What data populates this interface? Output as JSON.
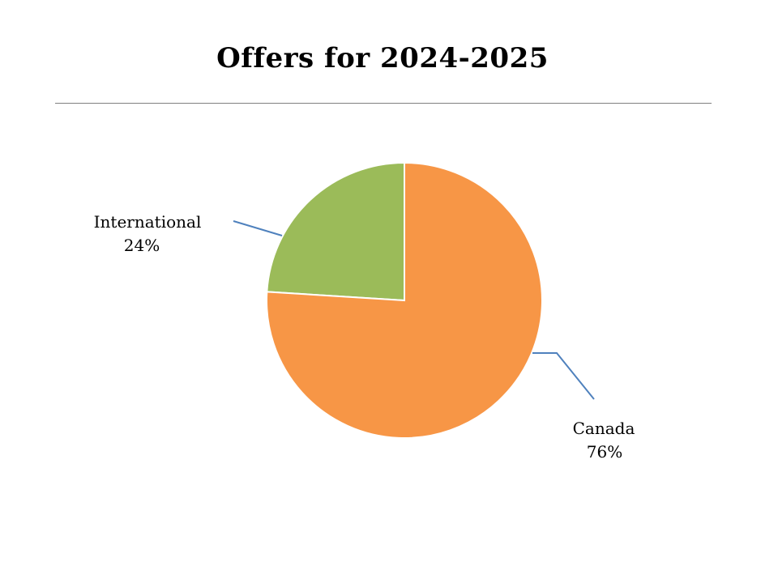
{
  "slide": {
    "title": "Offers for 2024-2025"
  },
  "chart_data": {
    "type": "pie",
    "title": "Offers for 2024-2025",
    "categories": [
      "International",
      "Canada"
    ],
    "values": [
      24,
      76
    ],
    "labels": [
      "24%",
      "76%"
    ],
    "colors": [
      "#9BBB59",
      "#F79646"
    ],
    "leader_line_color": "#4F81BD",
    "legend": "none"
  }
}
